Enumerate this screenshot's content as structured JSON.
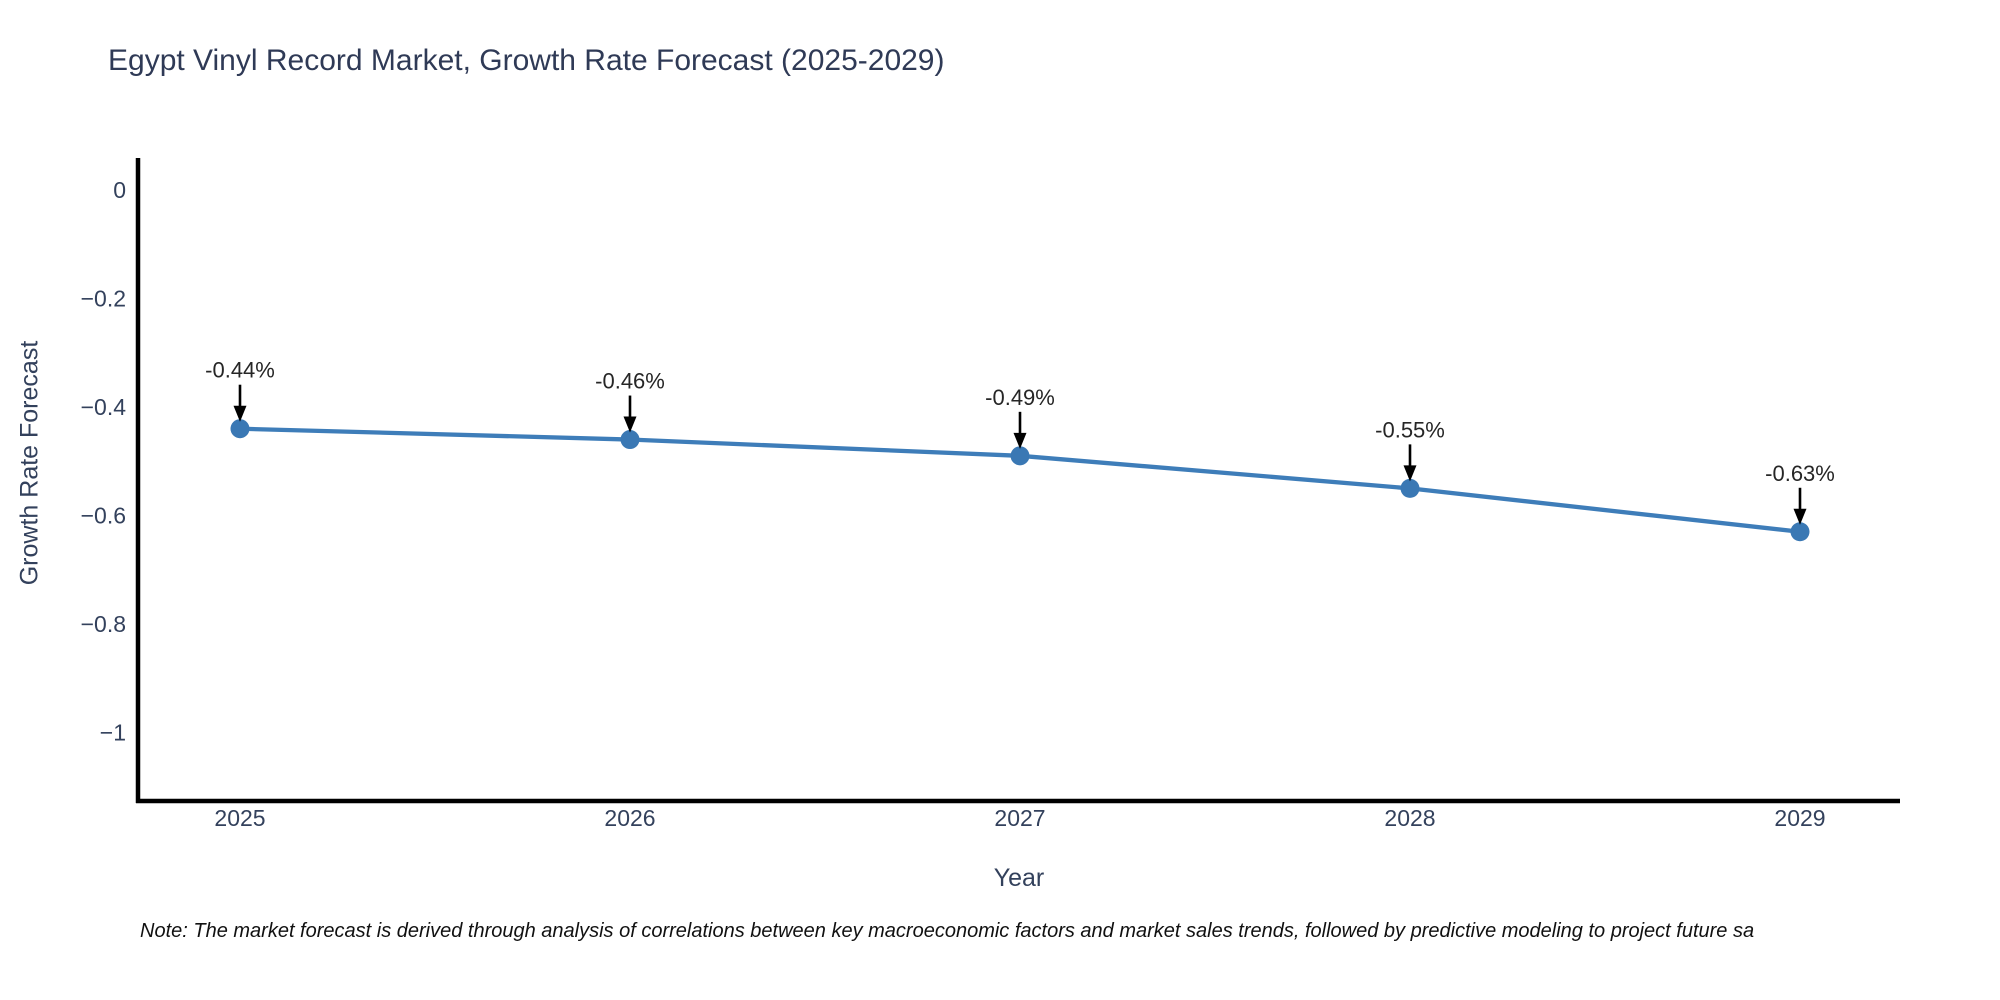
{
  "title": "Egypt Vinyl Record Market, Growth Rate Forecast (2025-2029)",
  "note": "Note: The market forecast is derived through analysis of correlations between key macroeconomic factors and market sales trends, followed by predictive modeling to project future sa",
  "chart_data": {
    "type": "line",
    "title": "Egypt Vinyl Record Market, Growth Rate Forecast (2025-2029)",
    "xlabel": "Year",
    "ylabel": "Growth Rate Forecast",
    "x": [
      2025,
      2026,
      2027,
      2028,
      2029
    ],
    "series": [
      {
        "name": "Growth Rate Forecast (%)",
        "values": [
          -0.44,
          -0.46,
          -0.49,
          -0.55,
          -0.63
        ]
      }
    ],
    "point_labels": [
      "-0.44%",
      "-0.46%",
      "-0.49%",
      "-0.55%",
      "-0.63%"
    ],
    "xtick_labels": [
      "2025",
      "2026",
      "2027",
      "2028",
      "2029"
    ],
    "ytick_values": [
      0,
      -0.2,
      -0.4,
      -0.6,
      -0.8,
      -1
    ],
    "ytick_labels": [
      "0",
      "−0.2",
      "−0.4",
      "−0.6",
      "−0.8",
      "−1"
    ],
    "ylim": [
      -1.18,
      0.06
    ],
    "grid": false,
    "legend": "none",
    "line_color": "#3e7db9",
    "marker_color": "#3a78b4",
    "axis_color": "#000000",
    "tick_color": "#33415c",
    "annotation_color": "#262626",
    "arrow_color": "#000000"
  }
}
